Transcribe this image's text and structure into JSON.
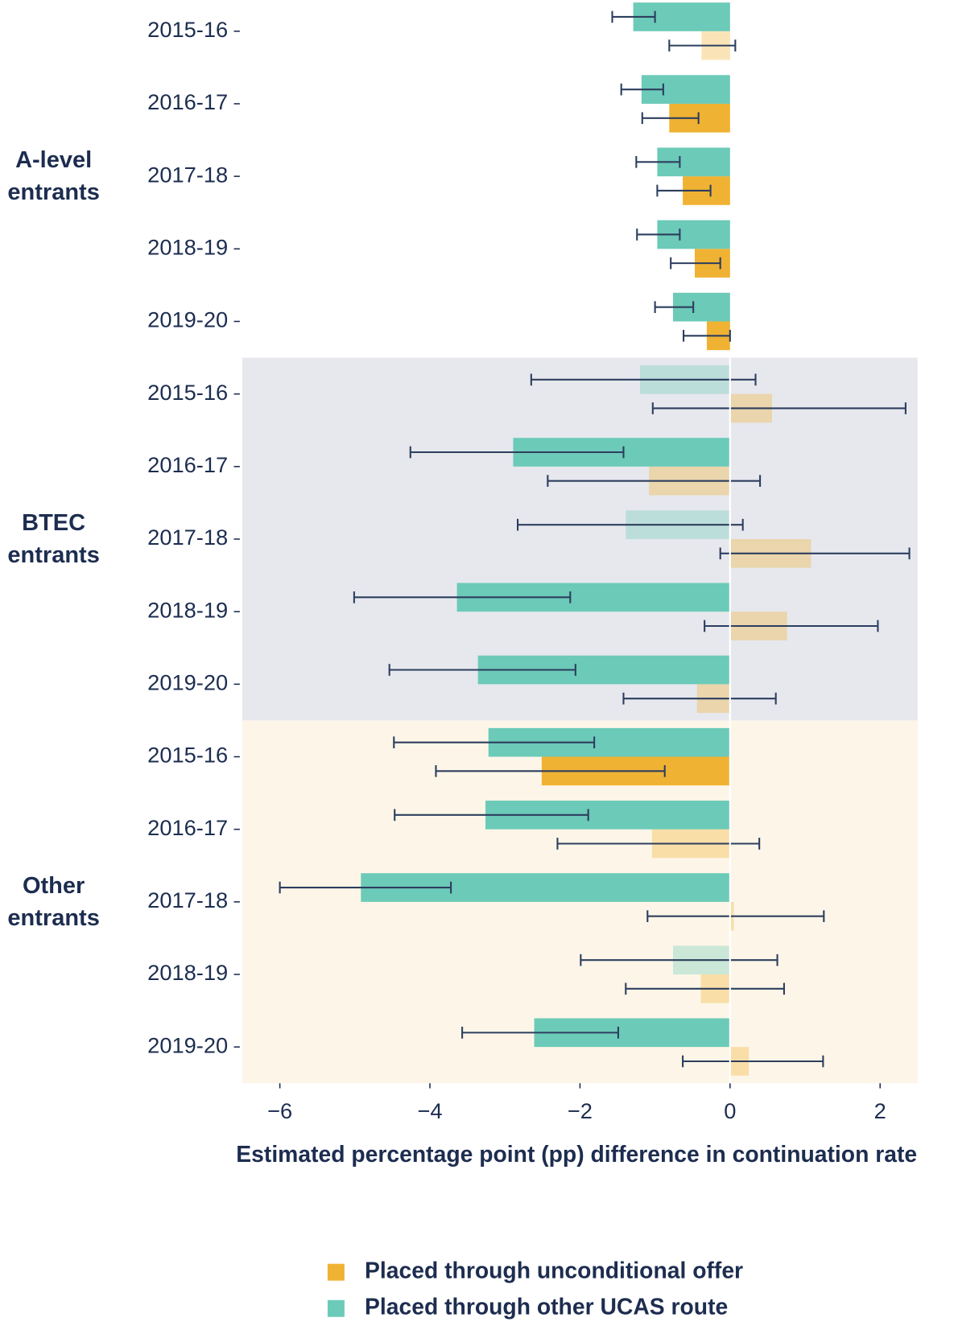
{
  "chart_data": {
    "type": "bar",
    "orientation": "horizontal",
    "xlabel": "Estimated percentage point (pp) difference in continuation rate",
    "xlim": [
      -6.5,
      2.5
    ],
    "xticks": [
      {
        "value": -6,
        "label": "−6"
      },
      {
        "value": -4,
        "label": "−4"
      },
      {
        "value": -2,
        "label": "−2"
      },
      0,
      2
    ],
    "zero_line_color": "#ffffff",
    "groups": [
      {
        "name": "A-level entrants",
        "background": "#ffffff",
        "categories": [
          "2015-16",
          "2016-17",
          "2017-18",
          "2018-19",
          "2019-20"
        ]
      },
      {
        "name": "BTEC entrants",
        "background": "#e6e8ee",
        "categories": [
          "2015-16",
          "2016-17",
          "2017-18",
          "2018-19",
          "2019-20"
        ]
      },
      {
        "name": "Other entrants",
        "background": "#fdf6e8",
        "categories": [
          "2015-16",
          "2016-17",
          "2017-18",
          "2018-19",
          "2019-20"
        ]
      }
    ],
    "error_color": "#2d3e5e",
    "series": [
      {
        "name": "Placed through unconditional offer",
        "color": "#f0b232",
        "values": [
          -0.38,
          -0.81,
          -0.63,
          -0.47,
          -0.31,
          0.56,
          -1.08,
          1.08,
          0.76,
          -0.44,
          -2.51,
          -1.04,
          0.05,
          -0.39,
          0.25
        ],
        "ci_low": [
          -0.81,
          -1.17,
          -0.97,
          -0.79,
          -0.62,
          -1.03,
          -2.43,
          -0.13,
          -0.34,
          -1.42,
          -3.92,
          -2.3,
          -1.1,
          -1.39,
          -0.63
        ],
        "ci_high": [
          0.07,
          -0.42,
          -0.26,
          -0.13,
          0.0,
          2.34,
          0.4,
          2.39,
          1.97,
          0.61,
          -0.87,
          0.39,
          1.25,
          0.72,
          1.24
        ],
        "faded": [
          true,
          false,
          false,
          false,
          false,
          true,
          true,
          true,
          true,
          true,
          false,
          true,
          true,
          true,
          true
        ]
      },
      {
        "name": "Placed through other UCAS route",
        "color": "#6ccab8",
        "values": [
          -1.29,
          -1.18,
          -0.97,
          -0.97,
          -0.76,
          -1.2,
          -2.89,
          -1.39,
          -3.64,
          -3.36,
          -3.22,
          -3.26,
          -4.92,
          -0.76,
          -2.61
        ],
        "ci_low": [
          -1.57,
          -1.45,
          -1.25,
          -1.24,
          -1.0,
          -2.65,
          -4.26,
          -2.83,
          -5.01,
          -4.54,
          -4.48,
          -4.47,
          -6.0,
          -1.99,
          -3.57
        ],
        "ci_high": [
          -1.0,
          -0.89,
          -0.67,
          -0.67,
          -0.49,
          0.34,
          -1.42,
          0.17,
          -2.13,
          -2.06,
          -1.81,
          -1.89,
          -3.72,
          0.63,
          -1.49
        ],
        "faded": [
          false,
          false,
          false,
          false,
          false,
          true,
          false,
          true,
          false,
          false,
          false,
          false,
          false,
          true,
          false
        ]
      }
    ]
  }
}
